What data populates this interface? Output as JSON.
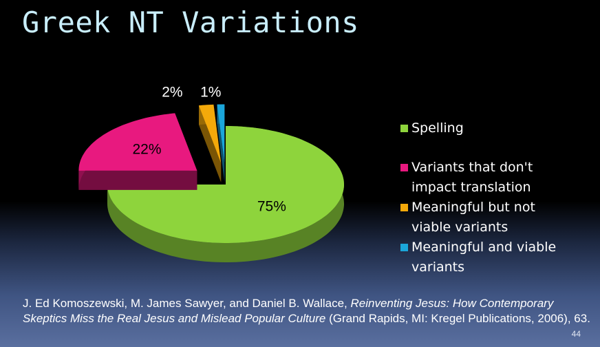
{
  "title": "Greek NT Variations",
  "chart_data": {
    "type": "pie",
    "categories": [
      "Spelling",
      "Variants that don't impact translation",
      "Meaningful but not viable variants",
      "Meaningful and viable variants"
    ],
    "values": [
      75,
      22,
      2,
      1
    ],
    "value_labels": [
      "75%",
      "22%",
      "2%",
      "1%"
    ],
    "colors": [
      "#8ed43c",
      "#e8197f",
      "#f4a90a",
      "#1ba6da"
    ],
    "legend": "right"
  },
  "citation": {
    "authors": "J. Ed Komoszewski, M. James Sawyer, and Daniel B. Wallace,",
    "book": "Reinventing Jesus: How Contemporary Skeptics Miss the Real Jesus and Mislead Popular Culture",
    "publication": "(Grand Rapids, MI: Kregel Publications, 2006), 63."
  },
  "slide_number": "44"
}
